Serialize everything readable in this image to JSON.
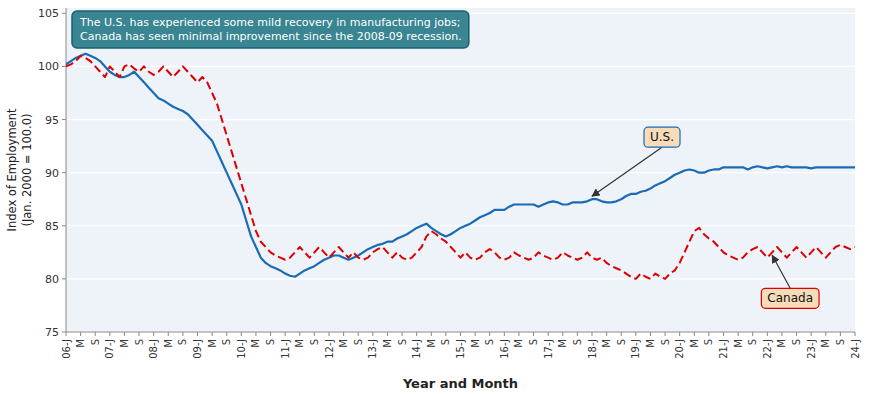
{
  "chart_data": {
    "type": "line",
    "annotation": "The U.S. has experienced some mild recovery in manufacturing jobs;\nCanada has seen minimal improvement since the 2008-09 recession.",
    "x_label": "Year and Month",
    "y_label": "Index of Employment\n(Jan. 2000 = 100.0)",
    "ylim": [
      75.0,
      105.5
    ],
    "yticks": [
      75,
      80,
      85,
      90,
      95,
      100,
      105
    ],
    "grid": true,
    "categories": [
      "06-J",
      null,
      null,
      "M",
      null,
      null,
      "S",
      null,
      null,
      "07-J",
      null,
      null,
      "M",
      null,
      null,
      "S",
      null,
      null,
      "08-J",
      null,
      null,
      "M",
      null,
      null,
      "S",
      null,
      null,
      "09-J",
      null,
      null,
      "M",
      null,
      null,
      "S",
      null,
      null,
      "10-J",
      null,
      null,
      "M",
      null,
      null,
      "S",
      null,
      null,
      "11-J",
      null,
      null,
      "M",
      null,
      null,
      "S",
      null,
      null,
      "12-J",
      null,
      null,
      "M",
      null,
      null,
      "S",
      null,
      null,
      "13-J",
      null,
      null,
      "M",
      null,
      null,
      "S",
      null,
      null,
      "14-J",
      null,
      null,
      "M",
      null,
      null,
      "S",
      null,
      null,
      "15-J",
      null,
      null,
      "M",
      null,
      null,
      "S",
      null,
      null,
      "16-J",
      null,
      null,
      "M",
      null,
      null,
      "S",
      null,
      null,
      "17-J",
      null,
      null,
      "M",
      null,
      null,
      "S",
      null,
      null,
      "18-J",
      null,
      null,
      "M",
      null,
      null,
      "S",
      null,
      null,
      "19-J",
      null,
      null,
      "M",
      null,
      null,
      "S",
      null,
      null,
      "20-J",
      null,
      null,
      "M",
      null,
      null,
      "S",
      null,
      null,
      "21-J",
      null,
      null,
      "M",
      null,
      null,
      "S",
      null,
      null,
      "22-J",
      null,
      null,
      "M",
      null,
      null,
      "S",
      null,
      null,
      "23-J",
      null,
      null,
      "M",
      null,
      null,
      "S",
      null,
      null,
      "24-J"
    ],
    "series": [
      {
        "name": "U.S.",
        "color": "#1a6bb5",
        "line_style": "solid",
        "values": [
          100.2,
          100.5,
          100.8,
          101.0,
          101.2,
          101.0,
          100.8,
          100.5,
          100.0,
          99.5,
          99.2,
          99.0,
          99.0,
          99.2,
          99.5,
          99.0,
          98.5,
          98.0,
          97.5,
          97.0,
          96.8,
          96.5,
          96.2,
          96.0,
          95.8,
          95.5,
          95.0,
          94.5,
          94.0,
          93.5,
          93.0,
          92.0,
          91.0,
          90.0,
          89.0,
          88.0,
          87.0,
          85.5,
          84.0,
          83.0,
          82.0,
          81.5,
          81.2,
          81.0,
          80.8,
          80.5,
          80.3,
          80.2,
          80.5,
          80.8,
          81.0,
          81.2,
          81.5,
          81.8,
          82.0,
          82.2,
          82.2,
          82.0,
          81.8,
          82.0,
          82.2,
          82.5,
          82.8,
          83.0,
          83.2,
          83.3,
          83.5,
          83.5,
          83.8,
          84.0,
          84.2,
          84.5,
          84.8,
          85.0,
          85.2,
          84.8,
          84.5,
          84.2,
          84.0,
          84.2,
          84.5,
          84.8,
          85.0,
          85.2,
          85.5,
          85.8,
          86.0,
          86.2,
          86.5,
          86.5,
          86.5,
          86.8,
          87.0,
          87.0,
          87.0,
          87.0,
          87.0,
          86.8,
          87.0,
          87.2,
          87.3,
          87.2,
          87.0,
          87.0,
          87.2,
          87.2,
          87.2,
          87.3,
          87.5,
          87.5,
          87.3,
          87.2,
          87.2,
          87.3,
          87.5,
          87.8,
          88.0,
          88.0,
          88.2,
          88.3,
          88.5,
          88.8,
          89.0,
          89.2,
          89.5,
          89.8,
          90.0,
          90.2,
          90.3,
          90.2,
          90.0,
          90.0,
          90.2,
          90.3,
          90.3,
          90.5,
          90.5,
          90.5,
          90.5,
          90.5,
          90.3,
          90.5,
          90.6,
          90.5,
          90.4,
          90.5,
          90.6,
          90.5,
          90.6,
          90.5,
          90.5,
          90.5,
          90.5,
          90.4,
          90.5,
          90.5,
          90.5,
          90.5,
          90.5,
          90.5,
          90.5,
          90.5,
          90.5
        ]
      },
      {
        "name": "Canada",
        "color": "#dd0000",
        "line_style": "dashed",
        "values": [
          100.0,
          100.2,
          100.5,
          101.0,
          100.8,
          100.5,
          100.0,
          99.5,
          99.0,
          100.0,
          99.5,
          99.0,
          100.0,
          100.2,
          99.8,
          99.5,
          100.0,
          99.5,
          99.2,
          99.5,
          100.0,
          99.5,
          99.0,
          99.5,
          100.0,
          99.5,
          99.0,
          98.5,
          99.0,
          98.5,
          97.5,
          96.5,
          95.0,
          93.5,
          92.0,
          90.5,
          89.0,
          87.5,
          86.0,
          84.5,
          83.5,
          83.0,
          82.5,
          82.2,
          82.0,
          81.8,
          82.0,
          82.5,
          83.0,
          82.5,
          82.0,
          82.5,
          83.0,
          82.5,
          82.0,
          82.5,
          83.0,
          82.5,
          82.0,
          82.5,
          82.0,
          81.8,
          82.0,
          82.5,
          82.8,
          83.0,
          82.5,
          82.0,
          82.5,
          82.0,
          81.8,
          82.0,
          82.5,
          83.0,
          84.0,
          84.5,
          84.2,
          83.8,
          83.5,
          83.0,
          82.5,
          82.0,
          82.5,
          82.0,
          81.8,
          82.0,
          82.5,
          82.8,
          82.5,
          82.0,
          81.8,
          82.0,
          82.5,
          82.2,
          82.0,
          81.8,
          82.0,
          82.5,
          82.2,
          82.0,
          81.8,
          82.0,
          82.5,
          82.2,
          82.0,
          81.8,
          82.0,
          82.5,
          82.0,
          81.8,
          82.0,
          81.5,
          81.2,
          81.0,
          80.8,
          80.5,
          80.2,
          80.0,
          80.5,
          80.2,
          80.0,
          80.5,
          80.2,
          80.0,
          80.5,
          80.8,
          81.5,
          82.5,
          83.5,
          84.5,
          84.8,
          84.2,
          83.8,
          83.5,
          83.0,
          82.5,
          82.2,
          82.0,
          81.8,
          82.0,
          82.5,
          82.8,
          83.0,
          82.5,
          82.0,
          82.5,
          83.0,
          82.5,
          82.0,
          82.5,
          83.0,
          82.5,
          82.0,
          82.5,
          83.0,
          82.5,
          82.0,
          82.5,
          83.0,
          83.2,
          83.0,
          82.8,
          83.0
        ]
      }
    ]
  }
}
